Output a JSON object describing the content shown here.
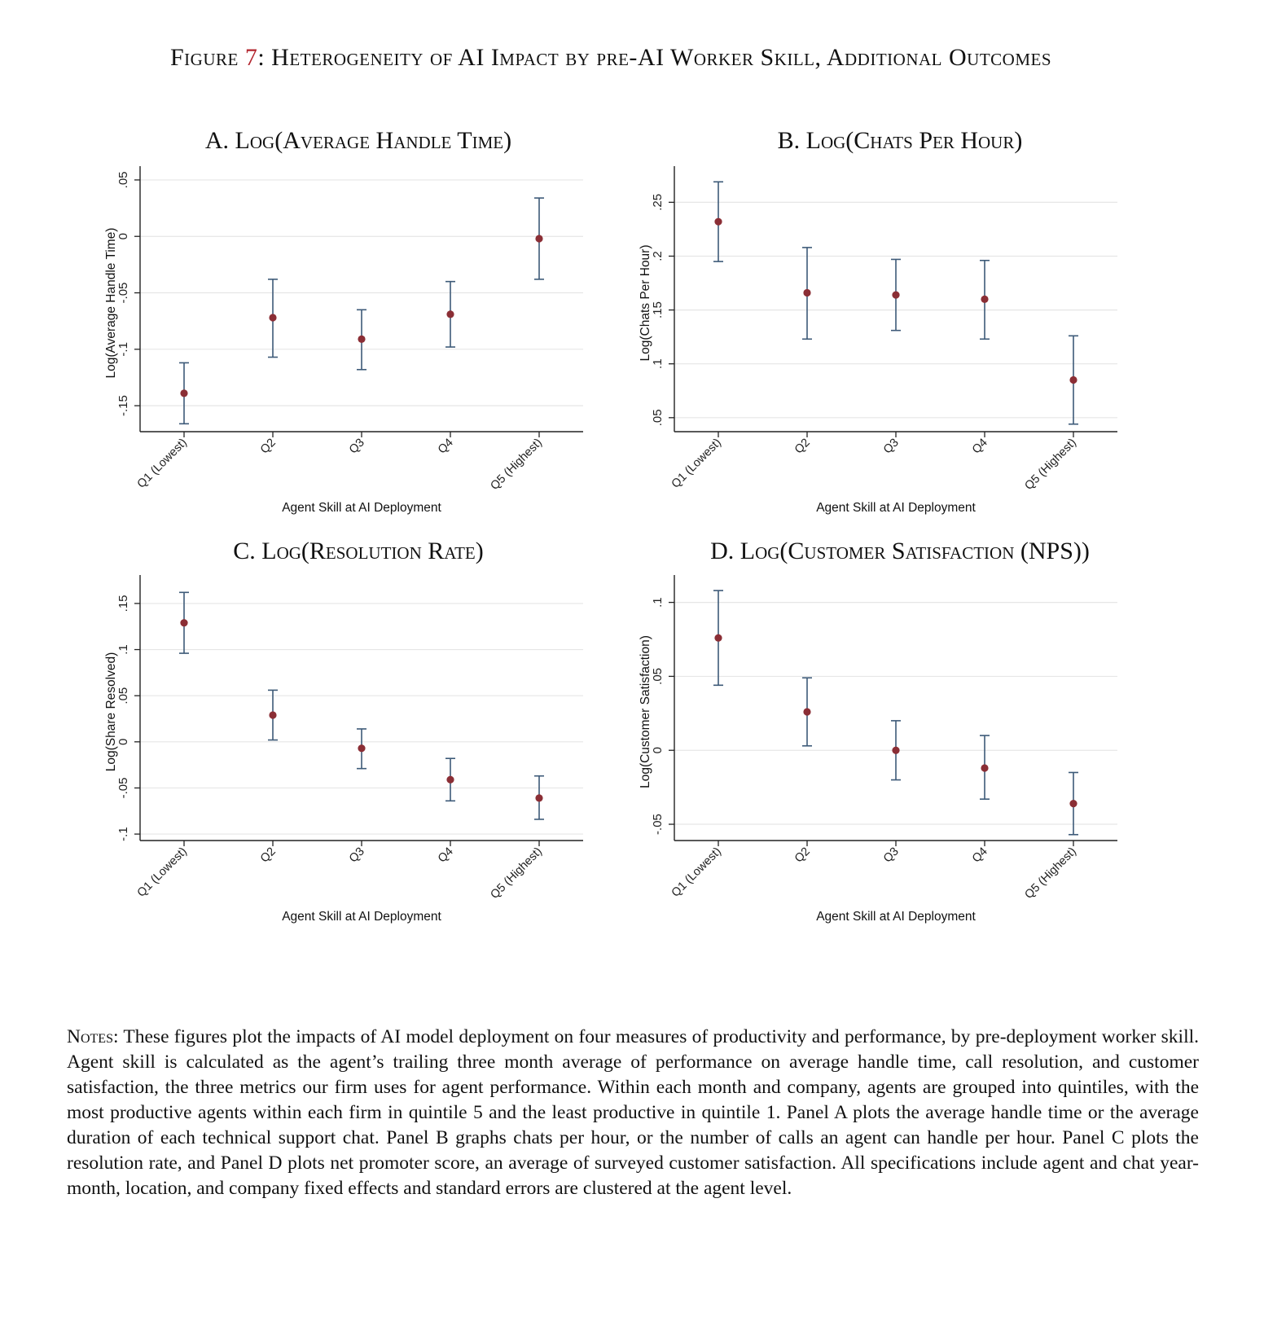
{
  "figure": {
    "prefix": "Figure",
    "number": "7",
    "title": ": Heterogeneity of AI Impact by pre-AI Worker Skill, Additional Outcomes"
  },
  "notes": {
    "lead": "Notes:",
    "text": " These figures plot the impacts of AI model deployment on four measures of productivity and performance, by pre-deployment worker skill. Agent skill is calculated as the agent’s trailing three month average of performance on average handle time, call resolution, and customer satisfaction, the three metrics our firm uses for agent performance. Within each month and company, agents are grouped into quintiles, with the most productive agents within each firm in quintile 5 and the least productive in quintile 1. Panel A plots the average handle time or the average duration of each technical support chat. Panel B graphs chats per hour, or the number of calls an agent can handle per hour. Panel C plots the resolution rate, and Panel D plots net promoter score, an average of surveyed customer satisfaction. All specifications include agent and chat year-month, location, and company fixed effects and standard errors are clustered at the agent level."
  },
  "colors": {
    "point": "#8b2e35",
    "errorbar": "#3d5a78",
    "grid": "#e6e6e6",
    "axis": "#222222",
    "figure_number": "#b2242d"
  },
  "chart_data": [
    {
      "type": "scatter",
      "panel": "A",
      "title": "A. Log(Average Handle Time)",
      "xlabel": "Agent Skill at AI Deployment",
      "ylabel": "Log(Average Handle Time)",
      "categories": [
        "Q1 (Lowest)",
        "Q2",
        "Q3",
        "Q4",
        "Q5 (Highest)"
      ],
      "values": [
        -0.139,
        -0.072,
        -0.091,
        -0.069,
        -0.002
      ],
      "ci_low": [
        -0.166,
        -0.107,
        -0.118,
        -0.098,
        -0.038
      ],
      "ci_high": [
        -0.112,
        -0.038,
        -0.065,
        -0.04,
        0.034
      ],
      "yticks": [
        0.05,
        0,
        -0.05,
        -0.1,
        -0.15
      ],
      "ytick_labels": [
        ".05",
        "0",
        "-.05",
        "-.1",
        "-.15"
      ],
      "ylim": [
        -0.173,
        0.055
      ],
      "grid": true
    },
    {
      "type": "scatter",
      "panel": "B",
      "title": "B. Log(Chats Per Hour)",
      "xlabel": "Agent Skill at AI Deployment",
      "ylabel": "Log(Chats Per Hour)",
      "categories": [
        "Q1 (Lowest)",
        "Q2",
        "Q3",
        "Q4",
        "Q5 (Highest)"
      ],
      "values": [
        0.232,
        0.166,
        0.164,
        0.16,
        0.085
      ],
      "ci_low": [
        0.195,
        0.123,
        0.131,
        0.123,
        0.044
      ],
      "ci_high": [
        0.269,
        0.208,
        0.197,
        0.196,
        0.126
      ],
      "yticks": [
        0.25,
        0.2,
        0.15,
        0.1,
        0.05
      ],
      "ytick_labels": [
        ".25",
        ".2",
        ".15",
        ".1",
        ".05"
      ],
      "ylim": [
        0.037,
        0.276
      ],
      "grid": true
    },
    {
      "type": "scatter",
      "panel": "C",
      "title": "C. Log(Resolution Rate)",
      "xlabel": "Agent Skill at AI Deployment",
      "ylabel": "Log(Share Resolved)",
      "categories": [
        "Q1 (Lowest)",
        "Q2",
        "Q3",
        "Q4",
        "Q5 (Highest)"
      ],
      "values": [
        0.129,
        0.029,
        -0.007,
        -0.041,
        -0.061
      ],
      "ci_low": [
        0.096,
        0.002,
        -0.029,
        -0.064,
        -0.084
      ],
      "ci_high": [
        0.162,
        0.056,
        0.014,
        -0.018,
        -0.037
      ],
      "yticks": [
        0.15,
        0.1,
        0.05,
        0,
        -0.05,
        -0.1
      ],
      "ytick_labels": [
        ".15",
        ".1",
        ".05",
        "0",
        "-.05",
        "-.1"
      ],
      "ylim": [
        -0.107,
        0.172
      ],
      "grid": true
    },
    {
      "type": "scatter",
      "panel": "D",
      "title": "D. Log(Customer Satisfaction (NPS))",
      "xlabel": "Agent Skill at AI Deployment",
      "ylabel": "Log(Customer Satisfaction)",
      "categories": [
        "Q1 (Lowest)",
        "Q2",
        "Q3",
        "Q4",
        "Q5 (Highest)"
      ],
      "values": [
        0.076,
        0.026,
        0.0,
        -0.012,
        -0.036
      ],
      "ci_low": [
        0.044,
        0.003,
        -0.02,
        -0.033,
        -0.057
      ],
      "ci_high": [
        0.108,
        0.049,
        0.02,
        0.01,
        -0.015
      ],
      "yticks": [
        0.1,
        0.05,
        0,
        -0.05
      ],
      "ytick_labels": [
        ".1",
        ".05",
        "0",
        "-.05"
      ],
      "ylim": [
        -0.061,
        0.113
      ],
      "grid": true
    }
  ]
}
